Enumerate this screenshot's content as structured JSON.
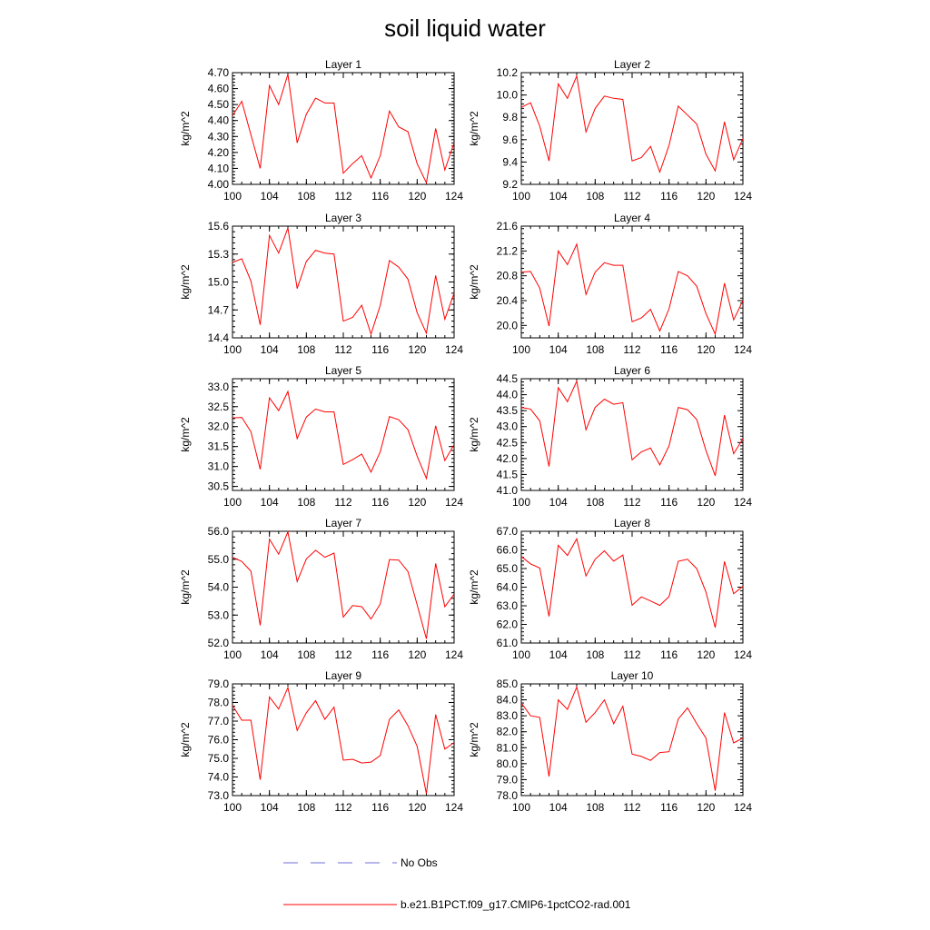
{
  "figure": {
    "title": "soil liquid water"
  },
  "legend": {
    "entries": [
      {
        "label": "No Obs",
        "color": "#6f6fd8",
        "dash": "dashed"
      },
      {
        "label": "b.e21.B1PCT.f09_g17.CMIP6-1pctCO2-rad.001",
        "color": "#ff0000",
        "dash": "solid"
      }
    ]
  },
  "chart_data": [
    {
      "type": "line",
      "title": "Layer 1",
      "ylabel": "kg/m^2",
      "x": [
        100,
        101,
        102,
        103,
        104,
        105,
        106,
        107,
        108,
        109,
        110,
        111,
        112,
        113,
        114,
        115,
        116,
        117,
        118,
        119,
        120,
        121,
        122,
        123,
        124
      ],
      "xlim": [
        100,
        124
      ],
      "xticks": [
        "100",
        "104",
        "108",
        "112",
        "116",
        "120",
        "124"
      ],
      "ylim": [
        4.0,
        4.7
      ],
      "yticks": [
        "4.00",
        "4.10",
        "4.20",
        "4.30",
        "4.40",
        "4.50",
        "4.60",
        "4.70"
      ],
      "series": [
        {
          "color": "#ff0000",
          "values": [
            4.43,
            4.52,
            4.31,
            4.1,
            4.62,
            4.5,
            4.69,
            4.26,
            4.44,
            4.54,
            4.51,
            4.51,
            4.07,
            4.13,
            4.18,
            4.04,
            4.18,
            4.46,
            4.36,
            4.33,
            4.13,
            4.01,
            4.35,
            4.09,
            4.26
          ]
        }
      ]
    },
    {
      "type": "line",
      "title": "Layer 2",
      "ylabel": "kg/m^2",
      "x": [
        100,
        101,
        102,
        103,
        104,
        105,
        106,
        107,
        108,
        109,
        110,
        111,
        112,
        113,
        114,
        115,
        116,
        117,
        118,
        119,
        120,
        121,
        122,
        123,
        124
      ],
      "xlim": [
        100,
        124
      ],
      "xticks": [
        "100",
        "104",
        "108",
        "112",
        "116",
        "120",
        "124"
      ],
      "ylim": [
        9.2,
        10.2
      ],
      "yticks": [
        "9.2",
        "9.4",
        "9.6",
        "9.8",
        "10.0",
        "10.2"
      ],
      "series": [
        {
          "color": "#ff0000",
          "values": [
            9.89,
            9.93,
            9.72,
            9.41,
            10.1,
            9.97,
            10.17,
            9.67,
            9.88,
            9.99,
            9.97,
            9.96,
            9.41,
            9.44,
            9.54,
            9.31,
            9.55,
            9.9,
            9.82,
            9.74,
            9.47,
            9.32,
            9.76,
            9.42,
            9.61
          ]
        }
      ]
    },
    {
      "type": "line",
      "title": "Layer 3",
      "ylabel": "kg/m^2",
      "x": [
        100,
        101,
        102,
        103,
        104,
        105,
        106,
        107,
        108,
        109,
        110,
        111,
        112,
        113,
        114,
        115,
        116,
        117,
        118,
        119,
        120,
        121,
        122,
        123,
        124
      ],
      "xlim": [
        100,
        124
      ],
      "xticks": [
        "100",
        "104",
        "108",
        "112",
        "116",
        "120",
        "124"
      ],
      "ylim": [
        14.4,
        15.6
      ],
      "yticks": [
        "14.4",
        "14.7",
        "15.0",
        "15.3",
        "15.6"
      ],
      "series": [
        {
          "color": "#ff0000",
          "values": [
            15.21,
            15.25,
            15.01,
            14.54,
            15.5,
            15.31,
            15.58,
            14.93,
            15.22,
            15.34,
            15.31,
            15.3,
            14.58,
            14.62,
            14.75,
            14.44,
            14.75,
            15.23,
            15.16,
            15.03,
            14.67,
            14.45,
            15.07,
            14.6,
            14.88
          ]
        }
      ]
    },
    {
      "type": "line",
      "title": "Layer 4",
      "ylabel": "kg/m^2",
      "x": [
        100,
        101,
        102,
        103,
        104,
        105,
        106,
        107,
        108,
        109,
        110,
        111,
        112,
        113,
        114,
        115,
        116,
        117,
        118,
        119,
        120,
        121,
        122,
        123,
        124
      ],
      "xlim": [
        100,
        124
      ],
      "xticks": [
        "100",
        "104",
        "108",
        "112",
        "116",
        "120",
        "124"
      ],
      "ylim": [
        19.8,
        21.6
      ],
      "yticks": [
        "20.0",
        "20.4",
        "20.8",
        "21.2",
        "21.6"
      ],
      "series": [
        {
          "color": "#ff0000",
          "values": [
            20.86,
            20.87,
            20.6,
            19.99,
            21.2,
            20.98,
            21.31,
            20.5,
            20.86,
            21.01,
            20.97,
            20.97,
            20.06,
            20.12,
            20.26,
            19.91,
            20.27,
            20.87,
            20.8,
            20.63,
            20.19,
            19.86,
            20.68,
            20.09,
            20.4
          ]
        }
      ]
    },
    {
      "type": "line",
      "title": "Layer 5",
      "ylabel": "kg/m^2",
      "x": [
        100,
        101,
        102,
        103,
        104,
        105,
        106,
        107,
        108,
        109,
        110,
        111,
        112,
        113,
        114,
        115,
        116,
        117,
        118,
        119,
        120,
        121,
        122,
        123,
        124
      ],
      "xlim": [
        100,
        124
      ],
      "xticks": [
        "100",
        "104",
        "108",
        "112",
        "116",
        "120",
        "124"
      ],
      "ylim": [
        30.4,
        33.2
      ],
      "yticks": [
        "30.5",
        "31.0",
        "31.5",
        "32.0",
        "32.5",
        "33.0"
      ],
      "series": [
        {
          "color": "#ff0000",
          "values": [
            32.22,
            32.23,
            31.87,
            30.93,
            32.72,
            32.4,
            32.88,
            31.7,
            32.24,
            32.44,
            32.37,
            32.37,
            31.05,
            31.17,
            31.31,
            30.86,
            31.37,
            32.25,
            32.17,
            31.92,
            31.26,
            30.7,
            32.02,
            31.15,
            31.55
          ]
        }
      ]
    },
    {
      "type": "line",
      "title": "Layer 6",
      "ylabel": "kg/m^2",
      "x": [
        100,
        101,
        102,
        103,
        104,
        105,
        106,
        107,
        108,
        109,
        110,
        111,
        112,
        113,
        114,
        115,
        116,
        117,
        118,
        119,
        120,
        121,
        122,
        123,
        124
      ],
      "xlim": [
        100,
        124
      ],
      "xticks": [
        "100",
        "104",
        "108",
        "112",
        "116",
        "120",
        "124"
      ],
      "ylim": [
        41.0,
        44.5
      ],
      "yticks": [
        "41.0",
        "41.5",
        "42.0",
        "42.5",
        "43.0",
        "43.5",
        "44.0",
        "44.5"
      ],
      "series": [
        {
          "color": "#ff0000",
          "values": [
            43.6,
            43.55,
            43.18,
            41.75,
            44.22,
            43.78,
            44.42,
            42.9,
            43.6,
            43.86,
            43.7,
            43.75,
            41.96,
            42.21,
            42.33,
            41.8,
            42.4,
            43.6,
            43.53,
            43.22,
            42.25,
            41.46,
            43.36,
            42.15,
            42.62
          ]
        }
      ]
    },
    {
      "type": "line",
      "title": "Layer 7",
      "ylabel": "kg/m^2",
      "x": [
        100,
        101,
        102,
        103,
        104,
        105,
        106,
        107,
        108,
        109,
        110,
        111,
        112,
        113,
        114,
        115,
        116,
        117,
        118,
        119,
        120,
        121,
        122,
        123,
        124
      ],
      "xlim": [
        100,
        124
      ],
      "xticks": [
        "100",
        "104",
        "108",
        "112",
        "116",
        "120",
        "124"
      ],
      "ylim": [
        52.0,
        56.0
      ],
      "yticks": [
        "52.0",
        "53.0",
        "54.0",
        "55.0",
        "56.0"
      ],
      "series": [
        {
          "color": "#ff0000",
          "values": [
            55.07,
            54.92,
            54.57,
            52.63,
            55.72,
            55.18,
            55.98,
            54.2,
            55.01,
            55.32,
            55.07,
            55.22,
            52.93,
            53.34,
            53.3,
            52.86,
            53.4,
            54.99,
            54.97,
            54.56,
            53.37,
            52.15,
            54.85,
            53.3,
            53.75
          ]
        }
      ]
    },
    {
      "type": "line",
      "title": "Layer 8",
      "ylabel": "kg/m^2",
      "x": [
        100,
        101,
        102,
        103,
        104,
        105,
        106,
        107,
        108,
        109,
        110,
        111,
        112,
        113,
        114,
        115,
        116,
        117,
        118,
        119,
        120,
        121,
        122,
        123,
        124
      ],
      "xlim": [
        100,
        124
      ],
      "xticks": [
        "100",
        "104",
        "108",
        "112",
        "116",
        "120",
        "124"
      ],
      "ylim": [
        61.0,
        67.0
      ],
      "yticks": [
        "61.0",
        "62.0",
        "63.0",
        "64.0",
        "65.0",
        "66.0",
        "67.0"
      ],
      "series": [
        {
          "color": "#ff0000",
          "values": [
            65.65,
            65.25,
            65.03,
            62.43,
            66.25,
            65.7,
            66.6,
            64.6,
            65.5,
            65.95,
            65.4,
            65.72,
            63.03,
            63.48,
            63.26,
            63.02,
            63.5,
            65.39,
            65.5,
            64.99,
            63.74,
            61.83,
            65.38,
            63.65,
            64.04
          ]
        }
      ]
    },
    {
      "type": "line",
      "title": "Layer 9",
      "ylabel": "kg/m^2",
      "x": [
        100,
        101,
        102,
        103,
        104,
        105,
        106,
        107,
        108,
        109,
        110,
        111,
        112,
        113,
        114,
        115,
        116,
        117,
        118,
        119,
        120,
        121,
        122,
        123,
        124
      ],
      "xlim": [
        100,
        124
      ],
      "xticks": [
        "100",
        "104",
        "108",
        "112",
        "116",
        "120",
        "124"
      ],
      "ylim": [
        73.0,
        79.0
      ],
      "yticks": [
        "73.0",
        "74.0",
        "75.0",
        "76.0",
        "77.0",
        "78.0",
        "79.0"
      ],
      "series": [
        {
          "color": "#ff0000",
          "values": [
            77.85,
            77.05,
            77.05,
            73.85,
            78.3,
            77.65,
            78.8,
            76.5,
            77.45,
            78.1,
            77.1,
            77.75,
            74.9,
            74.95,
            74.75,
            74.8,
            75.15,
            77.1,
            77.6,
            76.75,
            75.65,
            73.1,
            77.35,
            75.5,
            75.85
          ]
        }
      ]
    },
    {
      "type": "line",
      "title": "Layer 10",
      "ylabel": "kg/m^2",
      "x": [
        100,
        101,
        102,
        103,
        104,
        105,
        106,
        107,
        108,
        109,
        110,
        111,
        112,
        113,
        114,
        115,
        116,
        117,
        118,
        119,
        120,
        121,
        122,
        123,
        124
      ],
      "xlim": [
        100,
        124
      ],
      "xticks": [
        "100",
        "104",
        "108",
        "112",
        "116",
        "120",
        "124"
      ],
      "ylim": [
        78.0,
        85.0
      ],
      "yticks": [
        "78.0",
        "79.0",
        "80.0",
        "81.0",
        "82.0",
        "83.0",
        "84.0",
        "85.0"
      ],
      "series": [
        {
          "color": "#ff0000",
          "values": [
            83.8,
            83.0,
            82.9,
            79.2,
            84.0,
            83.4,
            84.8,
            82.6,
            83.2,
            84.0,
            82.5,
            83.6,
            80.6,
            80.45,
            80.2,
            80.7,
            80.75,
            82.8,
            83.5,
            82.5,
            81.6,
            78.3,
            83.2,
            81.3,
            81.6
          ]
        }
      ]
    }
  ]
}
